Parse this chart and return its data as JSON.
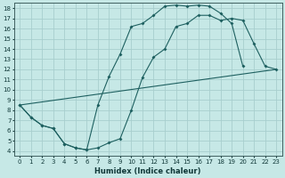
{
  "xlabel": "Humidex (Indice chaleur)",
  "bg_color": "#c6e8e6",
  "grid_color": "#a8cece",
  "line_color": "#1e6060",
  "xlim": [
    -0.5,
    23.5
  ],
  "ylim": [
    3.5,
    18.5
  ],
  "xticks": [
    0,
    1,
    2,
    3,
    4,
    5,
    6,
    7,
    8,
    9,
    10,
    11,
    12,
    13,
    14,
    15,
    16,
    17,
    18,
    19,
    20,
    21,
    22,
    23
  ],
  "yticks": [
    4,
    5,
    6,
    7,
    8,
    9,
    10,
    11,
    12,
    13,
    14,
    15,
    16,
    17,
    18
  ],
  "curve1_x": [
    0,
    1,
    2,
    3,
    4,
    5,
    6,
    7,
    8,
    9,
    10,
    11,
    12,
    13,
    14,
    15,
    16,
    17,
    18,
    19,
    20,
    21,
    22,
    23
  ],
  "curve1_y": [
    8.5,
    7.3,
    6.5,
    6.2,
    4.7,
    4.3,
    4.1,
    4.3,
    4.8,
    5.2,
    8.0,
    11.2,
    13.2,
    14.0,
    16.2,
    16.5,
    17.3,
    17.3,
    16.8,
    17.0,
    16.8,
    14.5,
    12.3,
    12.0
  ],
  "curve2_x": [
    0,
    1,
    2,
    3,
    4,
    5,
    6,
    7,
    8,
    9,
    10,
    11,
    12,
    13,
    14,
    15,
    16,
    17,
    18,
    19,
    20
  ],
  "curve2_y": [
    8.5,
    7.3,
    6.5,
    6.2,
    4.7,
    4.3,
    4.1,
    8.5,
    11.3,
    13.5,
    16.2,
    16.5,
    17.3,
    18.2,
    18.3,
    18.2,
    18.3,
    18.2,
    17.5,
    16.5,
    12.3
  ],
  "curve3_x": [
    0,
    23
  ],
  "curve3_y": [
    8.5,
    12.0
  ]
}
